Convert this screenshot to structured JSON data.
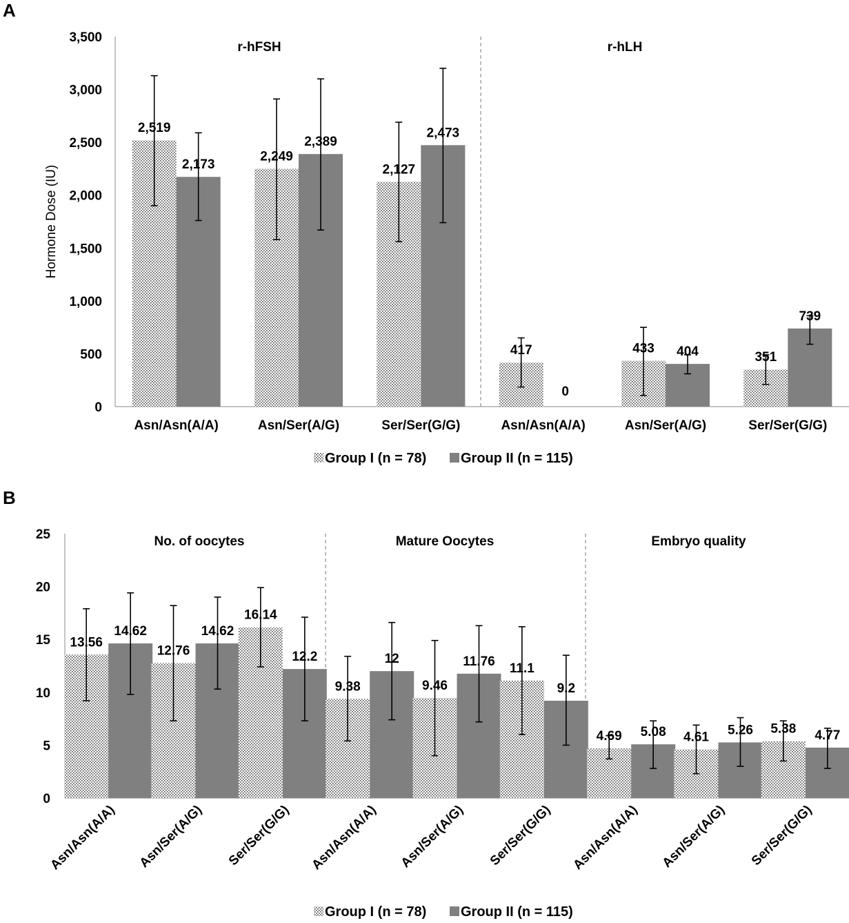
{
  "colors": {
    "group1_dots": "#4a4a4a",
    "group2": "#808080",
    "axis": "#888888",
    "errorbar": "#000000"
  },
  "legend": {
    "group1": "Group I (n = 78)",
    "group2": "Group II (n = 115)"
  },
  "chart_data": [
    {
      "panel": "A",
      "type": "bar",
      "ylabel": "Hormone Dose  (IU)",
      "ylim": [
        0,
        3500
      ],
      "yticks": [
        0,
        500,
        1000,
        1500,
        2000,
        2500,
        3000,
        3500
      ],
      "ytick_labels": [
        "0",
        "500",
        "1,000",
        "1,500",
        "2,000",
        "2,500",
        "3,000",
        "3,500"
      ],
      "legend_position": "bottom",
      "sections": [
        {
          "title": "r-hFSH",
          "categories": [
            "Asn/Asn(A/A)",
            "Asn/Ser(A/G)",
            "Ser/Ser(G/G)"
          ],
          "series": [
            {
              "name": "Group I (n = 78)",
              "values": [
                2519,
                2249,
                2127
              ],
              "labels": [
                "2,519",
                "2,249",
                "2,127"
              ],
              "err_low": [
                1900,
                1580,
                1560
              ],
              "err_high": [
                3130,
                2910,
                2690
              ]
            },
            {
              "name": "Group II (n = 115)",
              "values": [
                2173,
                2389,
                2473
              ],
              "labels": [
                "2,173",
                "2,389",
                "2,473"
              ],
              "err_low": [
                1760,
                1670,
                1740
              ],
              "err_high": [
                2590,
                3100,
                3200
              ]
            }
          ]
        },
        {
          "title": "r-hLH",
          "categories": [
            "Asn/Asn(A/A)",
            "Asn/Ser(A/G)",
            "Ser/Ser(G/G)"
          ],
          "series": [
            {
              "name": "Group I (n = 78)",
              "values": [
                417,
                433,
                351
              ],
              "labels": [
                "417",
                "433",
                "351"
              ],
              "err_low": [
                185,
                105,
                210
              ],
              "err_high": [
                650,
                750,
                490
              ]
            },
            {
              "name": "Group II (n = 115)",
              "values": [
                0,
                404,
                739
              ],
              "labels": [
                "0",
                "404",
                "739"
              ],
              "err_low": [
                null,
                310,
                590
              ],
              "err_high": [
                null,
                490,
                860
              ]
            }
          ]
        }
      ]
    },
    {
      "panel": "B",
      "type": "bar",
      "ylabel": "",
      "ylim": [
        0,
        25
      ],
      "yticks": [
        0,
        5,
        10,
        15,
        20,
        25
      ],
      "ytick_labels": [
        "0",
        "5",
        "10",
        "15",
        "20",
        "25"
      ],
      "legend_position": "bottom",
      "sections": [
        {
          "title": "No. of oocytes",
          "categories": [
            "Asn/Asn(A/A)",
            "Asn/Ser(A/G)",
            "Ser/Ser(G/G)"
          ],
          "series": [
            {
              "name": "Group I (n = 78)",
              "values": [
                13.56,
                12.76,
                16.14
              ],
              "labels": [
                "13.56",
                "12.76",
                "16.14"
              ],
              "err_low": [
                9.2,
                7.3,
                12.4
              ],
              "err_high": [
                17.9,
                18.2,
                19.9
              ]
            },
            {
              "name": "Group II (n = 115)",
              "values": [
                14.62,
                14.62,
                12.2
              ],
              "labels": [
                "14.62",
                "14.62",
                "12.2"
              ],
              "err_low": [
                9.8,
                10.3,
                7.3
              ],
              "err_high": [
                19.4,
                19.0,
                17.1
              ]
            }
          ]
        },
        {
          "title": "Mature Oocytes",
          "categories": [
            "Asn/Asn(A/A)",
            "Asn/Ser(A/G)",
            "Ser/Ser(G/G)"
          ],
          "series": [
            {
              "name": "Group I (n = 78)",
              "values": [
                9.38,
                9.46,
                11.1
              ],
              "labels": [
                "9.38",
                "9.46",
                "11.1"
              ],
              "err_low": [
                5.4,
                4.0,
                6.0
              ],
              "err_high": [
                13.4,
                14.9,
                16.2
              ]
            },
            {
              "name": "Group II (n = 115)",
              "values": [
                12,
                11.76,
                9.2
              ],
              "labels": [
                "12",
                "11.76",
                "9.2"
              ],
              "err_low": [
                7.4,
                7.2,
                5.0
              ],
              "err_high": [
                16.6,
                16.3,
                13.5
              ]
            }
          ]
        },
        {
          "title": "Embryo quality",
          "categories": [
            "Asn/Asn(A/A)",
            "Asn/Ser(A/G)",
            "Ser/Ser(G/G)"
          ],
          "series": [
            {
              "name": "Group I (n = 78)",
              "values": [
                4.69,
                4.61,
                5.38
              ],
              "labels": [
                "4.69",
                "4.61",
                "5.38"
              ],
              "err_low": [
                3.7,
                2.3,
                3.5
              ],
              "err_high": [
                5.9,
                6.9,
                7.3
              ]
            },
            {
              "name": "Group II (n = 115)",
              "values": [
                5.08,
                5.26,
                4.77
              ],
              "labels": [
                "5.08",
                "5.26",
                "4.77"
              ],
              "err_low": [
                2.8,
                3.0,
                2.8
              ],
              "err_high": [
                7.3,
                7.6,
                6.6
              ]
            }
          ]
        }
      ]
    }
  ]
}
